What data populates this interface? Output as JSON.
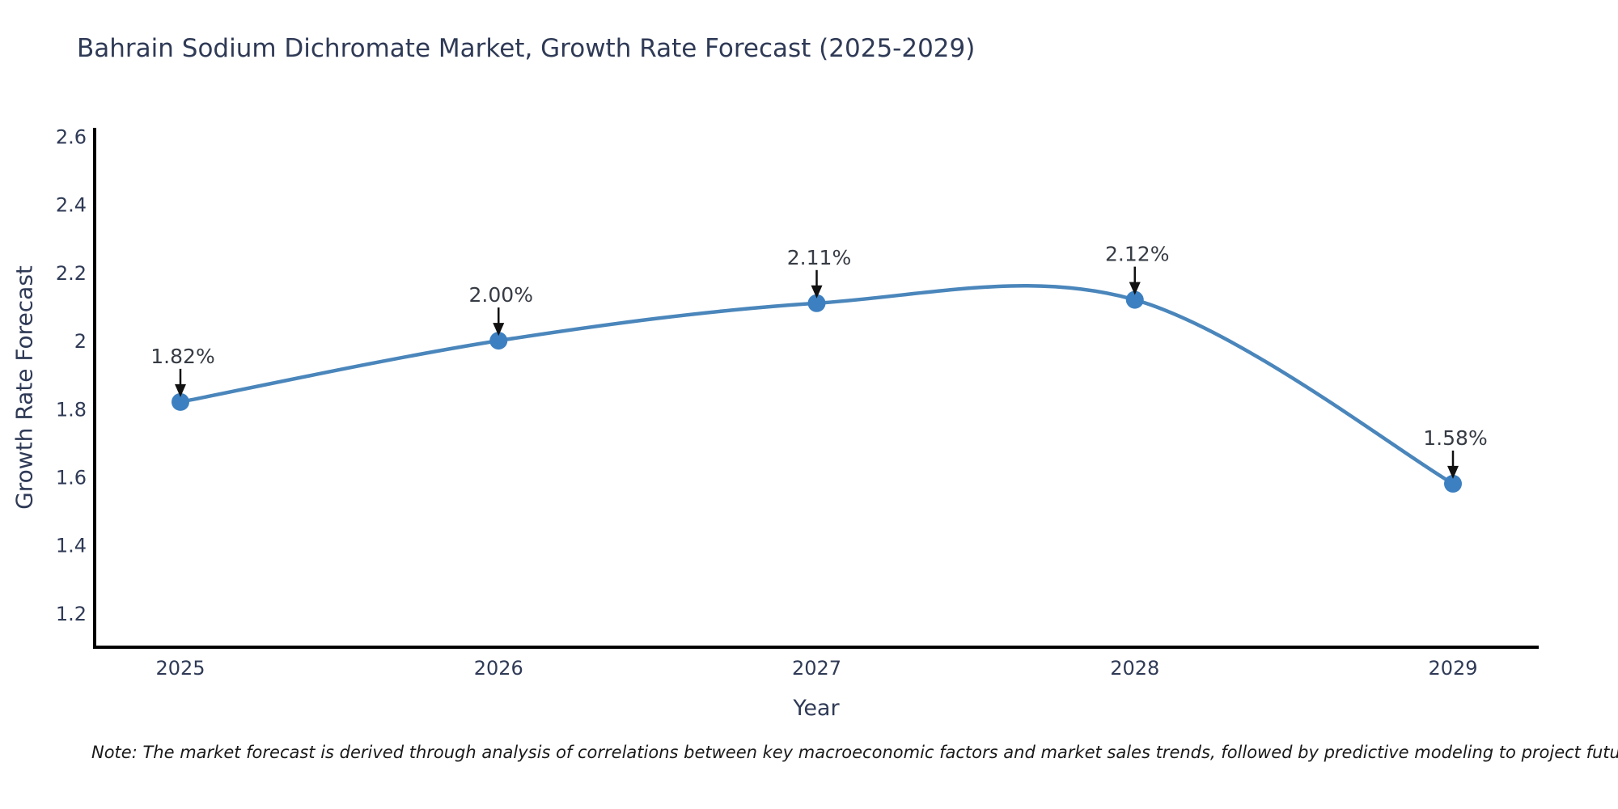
{
  "title": "Bahrain Sodium Dichromate Market, Growth Rate Forecast (2025-2029)",
  "note": "Note: The market forecast is derived through analysis of correlations between key macroeconomic factors and market sales trends, followed by predictive modeling to project future sales",
  "colors": {
    "line": "#4a86bb",
    "marker": "#3d80c1",
    "axis": "#000000",
    "text": "#2f3a56",
    "annotation_text": "#363b44",
    "arrow": "#111111",
    "background": "#ffffff"
  },
  "chart_data": {
    "type": "line",
    "title": "Bahrain Sodium Dichromate Market, Growth Rate Forecast (2025-2029)",
    "xlabel": "Year",
    "ylabel": "Growth Rate Forecast",
    "categories": [
      "2025",
      "2026",
      "2027",
      "2028",
      "2029"
    ],
    "series": [
      {
        "name": "Growth Rate Forecast",
        "values": [
          1.82,
          2.0,
          2.11,
          2.12,
          1.58
        ]
      }
    ],
    "point_labels": [
      "1.82%",
      "2.00%",
      "2.11%",
      "2.12%",
      "1.58%"
    ],
    "ytick_labels": [
      "2.6",
      "2.4",
      "2.2",
      "2",
      "1.8",
      "1.6",
      "1.4",
      "1.2"
    ],
    "ylim": [
      1.1,
      2.625
    ],
    "grid": false,
    "legend": "none",
    "line_shape": "spline",
    "annotation_style": "label-with-down-arrow"
  }
}
